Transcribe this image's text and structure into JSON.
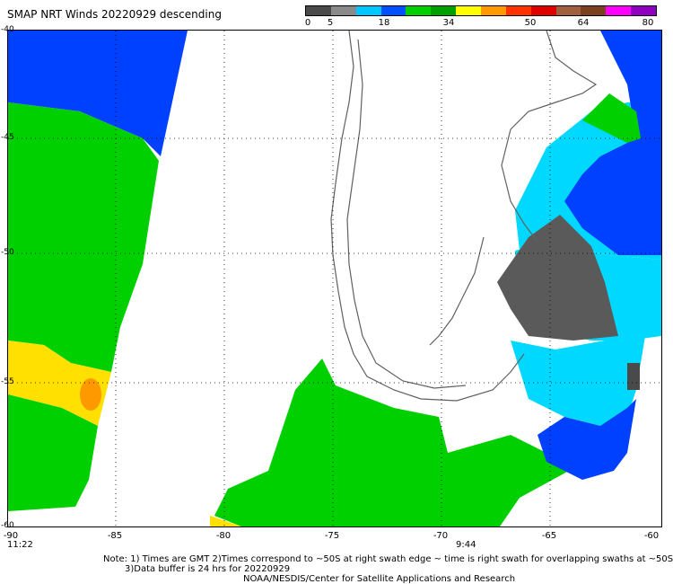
{
  "title": "SMAP NRT Winds  20220929  descending",
  "colorbar": {
    "labels": [
      "0",
      "5",
      "18",
      "34",
      "50",
      "64",
      "80"
    ],
    "segments": [
      "#4a4a4a",
      "#8a8a8a",
      "#00c8ff",
      "#0050ff",
      "#00d000",
      "#00a000",
      "#ffff00",
      "#ff9900",
      "#ff3300",
      "#e00000",
      "#a06040",
      "#7a4020",
      "#ff00ff",
      "#9000c0"
    ]
  },
  "axes": {
    "x_ticks": [
      "-90",
      "-85",
      "-80",
      "-75",
      "-70",
      "-65",
      "-60"
    ],
    "y_ticks": [
      "-40",
      "-45",
      "-50",
      "-55",
      "-60"
    ]
  },
  "time_labels": {
    "left": "11:22",
    "center": "9:44"
  },
  "notes": {
    "line1": "Note: 1) Times are GMT 2)Times correspond to ~50S at right swath edge ~ time is right swath for overlapping swaths at ~50S",
    "line2": "3)Data buffer is 24 hrs for 20220929",
    "line3": "NOAA/NESDIS/Center for Satellite Applications and Research"
  },
  "colors": {
    "calm": "#5a5a5a",
    "light": "#00d8ff",
    "moderate": "#0040ff",
    "strong": "#00d000",
    "gale": "#ffe000",
    "storm": "#ff8c00"
  }
}
